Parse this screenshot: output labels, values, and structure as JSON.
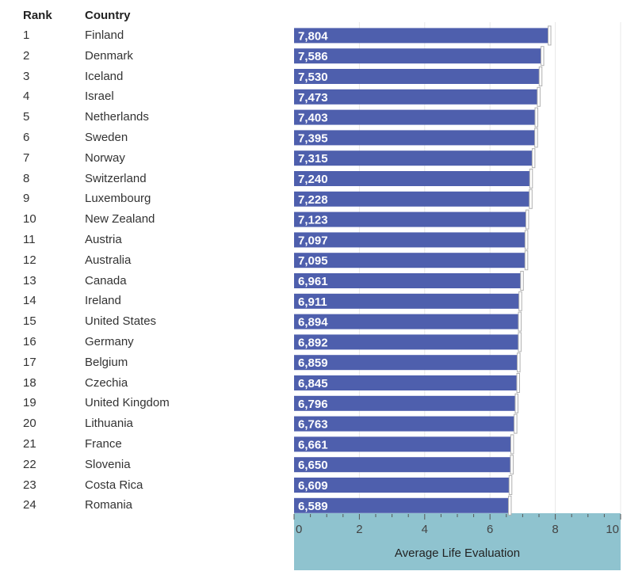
{
  "header": {
    "rank": "Rank",
    "country": "Country"
  },
  "colors": {
    "bar": "#4e5fad",
    "bar_text": "#ffffff",
    "axis_band": "#8fc3cf",
    "marker": "#b0b0b0",
    "grid": "#e8e8e8"
  },
  "chart_data": {
    "type": "bar",
    "orientation": "horizontal",
    "xlabel": "Average Life Evaluation",
    "xlim": [
      0,
      10
    ],
    "xticks": [
      "0",
      "2",
      "4",
      "6",
      "8",
      "10"
    ],
    "grid": true,
    "categories": [
      "Finland",
      "Denmark",
      "Iceland",
      "Israel",
      "Netherlands",
      "Sweden",
      "Norway",
      "Switzerland",
      "Luxembourg",
      "New Zealand",
      "Austria",
      "Australia",
      "Canada",
      "Ireland",
      "United States",
      "Germany",
      "Belgium",
      "Czechia",
      "United Kingdom",
      "Lithuania",
      "France",
      "Slovenia",
      "Costa Rica",
      "Romania"
    ],
    "ranks": [
      "1",
      "2",
      "3",
      "4",
      "5",
      "6",
      "7",
      "8",
      "9",
      "10",
      "11",
      "12",
      "13",
      "14",
      "15",
      "16",
      "17",
      "18",
      "19",
      "20",
      "21",
      "22",
      "23",
      "24"
    ],
    "values": [
      7.804,
      7.586,
      7.53,
      7.473,
      7.403,
      7.395,
      7.315,
      7.24,
      7.228,
      7.123,
      7.097,
      7.095,
      6.961,
      6.911,
      6.894,
      6.892,
      6.859,
      6.845,
      6.796,
      6.763,
      6.661,
      6.65,
      6.609,
      6.589
    ],
    "value_labels": [
      "7,804",
      "7,586",
      "7,530",
      "7,473",
      "7,403",
      "7,395",
      "7,315",
      "7,240",
      "7,228",
      "7,123",
      "7,097",
      "7,095",
      "6,961",
      "6,911",
      "6,894",
      "6,892",
      "6,859",
      "6,845",
      "6,796",
      "6,763",
      "6,661",
      "6,650",
      "6,609",
      "6,589"
    ]
  }
}
